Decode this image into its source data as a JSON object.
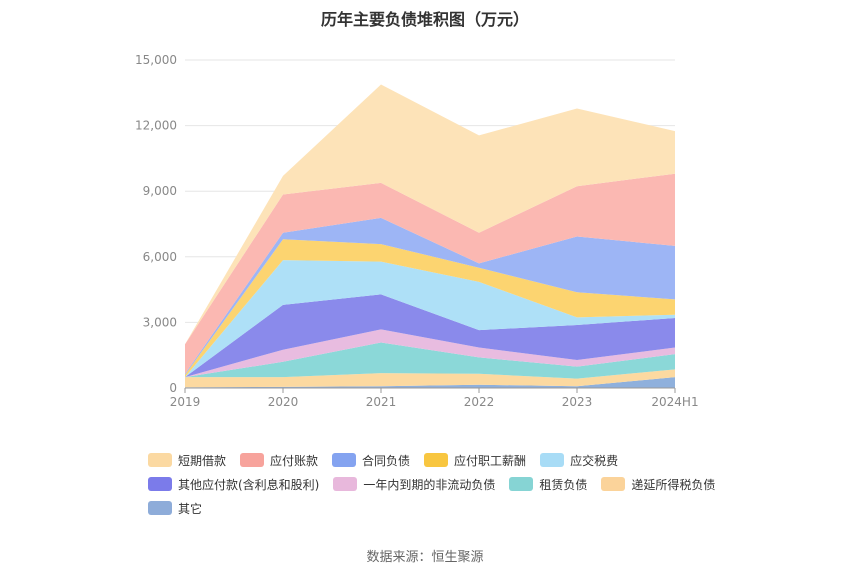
{
  "chart_title": "历年主要负债堆积图（万元）",
  "source": "数据来源：恒生聚源",
  "chart_data": {
    "type": "area",
    "stacked": true,
    "title": "历年主要负债堆积图（万元）",
    "x": [
      "2019",
      "2020",
      "2021",
      "2022",
      "2023",
      "2024H1"
    ],
    "ylim": [
      0,
      15000
    ],
    "yticks": [
      0,
      3000,
      6000,
      9000,
      12000,
      15000
    ],
    "ytick_labels": [
      "0",
      "3,000",
      "6,000",
      "9,000",
      "12,000",
      "15,000"
    ],
    "grid": true,
    "legend_position": "bottom",
    "series": [
      {
        "name": "其它",
        "color": "#8fb0dc",
        "values": [
          30,
          50,
          80,
          150,
          80,
          500
        ]
      },
      {
        "name": "递延所得税负债",
        "color": "#fcd9a0",
        "values": [
          470,
          450,
          600,
          500,
          350,
          350
        ]
      },
      {
        "name": "租赁负债",
        "color": "#8bd8d8",
        "values": [
          0,
          700,
          1400,
          750,
          550,
          700
        ]
      },
      {
        "name": "一年内到期的非流动负债",
        "color": "#e8bce0",
        "values": [
          0,
          550,
          600,
          450,
          300,
          300
        ]
      },
      {
        "name": "其他应付款(含利息和股利)",
        "color": "#8a8aeb",
        "values": [
          0,
          2050,
          1600,
          800,
          1600,
          1350
        ]
      },
      {
        "name": "应交税费",
        "color": "#aee0f7",
        "values": [
          0,
          2050,
          1500,
          2200,
          350,
          150
        ]
      },
      {
        "name": "应付职工薪酬",
        "color": "#fcd470",
        "values": [
          100,
          950,
          800,
          650,
          1150,
          700
        ]
      },
      {
        "name": "合同负债",
        "color": "#9db5f5",
        "values": [
          50,
          300,
          1200,
          200,
          2550,
          2450
        ]
      },
      {
        "name": "应付账款",
        "color": "#fbb8b2",
        "values": [
          1350,
          1750,
          1600,
          1400,
          2300,
          3300
        ]
      },
      {
        "name": "短期借款",
        "color": "#fde3b8",
        "values": [
          0,
          850,
          4500,
          4450,
          3550,
          1950
        ]
      }
    ]
  },
  "legend": [
    {
      "label": "短期借款",
      "color": "#fbd9a2"
    },
    {
      "label": "应付账款",
      "color": "#f7a39c"
    },
    {
      "label": "合同负债",
      "color": "#84a3f0"
    },
    {
      "label": "应付职工薪酬",
      "color": "#f8c640"
    },
    {
      "label": "应交税费",
      "color": "#a8dcf6"
    },
    {
      "label": "其他应付款(含利息和股利)",
      "color": "#7b7bea"
    },
    {
      "label": "一年内到期的非流动负债",
      "color": "#e8b8dc"
    },
    {
      "label": "租赁负债",
      "color": "#86d4d4"
    },
    {
      "label": "递延所得税负债",
      "color": "#fbd39a"
    },
    {
      "label": "其它",
      "color": "#8eacd9"
    }
  ]
}
